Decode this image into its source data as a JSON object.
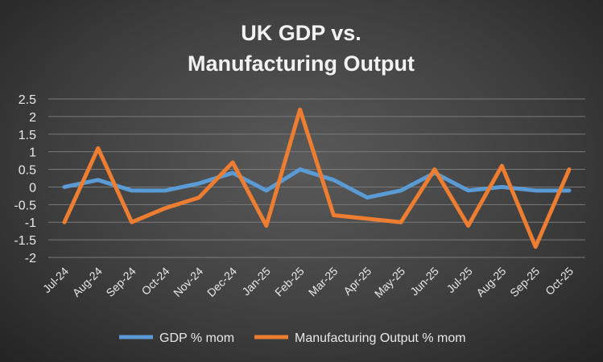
{
  "chart_data": {
    "type": "line",
    "title_lines": [
      "UK GDP vs.",
      "Manufacturing Output"
    ],
    "categories": [
      "Jul-24",
      "Aug-24",
      "Sep-24",
      "Oct-24",
      "Nov-24",
      "Dec-24",
      "Jan-25",
      "Feb-25",
      "Mar-25",
      "Apr-25",
      "May-25",
      "Jun-25",
      "Jul-25",
      "Aug-25",
      "Sep-25",
      "Oct-25"
    ],
    "series": [
      {
        "name": "GDP % mom",
        "color": "#5b9bd5",
        "values": [
          0,
          0.2,
          -0.1,
          -0.1,
          0.1,
          0.4,
          -0.1,
          0.5,
          0.2,
          -0.3,
          -0.1,
          0.4,
          -0.1,
          0,
          -0.1,
          -0.1
        ]
      },
      {
        "name": "Manufacturing Output % mom",
        "color": "#ed7d31",
        "values": [
          -1,
          1.1,
          -1,
          -0.6,
          -0.3,
          0.7,
          -1.1,
          2.2,
          -0.8,
          -0.9,
          -1.0,
          0.5,
          -1.1,
          0.6,
          -1.7,
          0.5
        ]
      }
    ],
    "yticks": [
      2.5,
      2,
      1.5,
      1,
      0.5,
      0,
      -0.5,
      -1,
      -1.5,
      -2
    ],
    "ylim": [
      -2,
      2.5
    ],
    "grid": true,
    "legend_position": "bottom"
  }
}
